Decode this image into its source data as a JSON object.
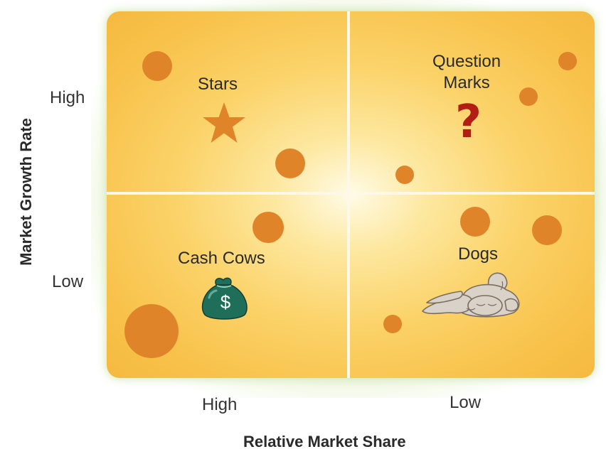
{
  "diagram": {
    "y_axis_title": "Market Growth Rate",
    "x_axis_title": "Relative Market Share",
    "y_labels": {
      "high": "High",
      "low": "Low"
    },
    "x_labels": {
      "high": "High",
      "low": "Low"
    },
    "quadrants": {
      "top_left": {
        "label": "Stars",
        "icon": "star-icon"
      },
      "top_right": {
        "label_line1": "Question",
        "label_line2": "Marks",
        "icon": "question-mark-icon",
        "icon_glyph": "?"
      },
      "bottom_left": {
        "label": "Cash Cows",
        "icon": "money-bag-icon",
        "icon_glyph": "$"
      },
      "bottom_right": {
        "label": "Dogs",
        "icon": "sleeping-dog-icon"
      }
    },
    "colors": {
      "dot": "#e0842a",
      "star": "#e0842a",
      "question_mark": "#b31e14",
      "money_bag": "#1e6e5a",
      "background": "#f8c24a"
    }
  }
}
